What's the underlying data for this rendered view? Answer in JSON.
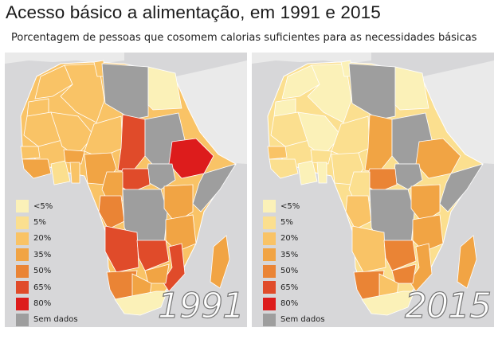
{
  "title": "Acesso básico a alimentação, em 1991 e 2015",
  "subtitle": "Porcentagem de pessoas que cosomem calorias suficientes para as necessidades básicas",
  "legend": [
    {
      "label": "<5%",
      "color": "#fbf1b8"
    },
    {
      "label": "5%",
      "color": "#fbdf8f"
    },
    {
      "label": "20%",
      "color": "#f9c366"
    },
    {
      "label": "35%",
      "color": "#f1a444"
    },
    {
      "label": "50%",
      "color": "#ea8435"
    },
    {
      "label": "65%",
      "color": "#e04b2a"
    },
    {
      "label": "80%",
      "color": "#dd1c1c"
    },
    {
      "label": "Sem dados",
      "color": "#9e9e9e"
    }
  ],
  "panels": [
    {
      "year": "1991"
    },
    {
      "year": "2015"
    }
  ]
}
